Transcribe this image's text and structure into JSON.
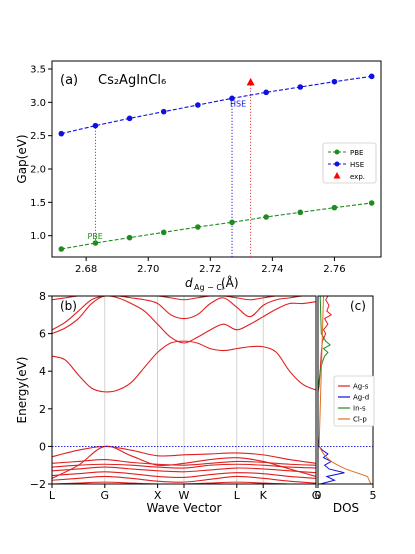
{
  "chart_data": [
    {
      "panel": "(a)",
      "type": "scatter",
      "title": "Cs₂AgInCl₆",
      "xlabel_main": "d",
      "xlabel_sub": "Ag − Cl",
      "xlabel_unit": "(Å)",
      "ylabel": "Gap(eV)",
      "xlim": [
        2.669,
        2.775
      ],
      "ylim": [
        0.68,
        3.62
      ],
      "xticks": [
        "2.68",
        "2.70",
        "2.72",
        "2.74",
        "2.76"
      ],
      "yticks": [
        "1.0",
        "1.5",
        "2.0",
        "2.5",
        "3.0",
        "3.5"
      ],
      "legend": [
        "PBE",
        "HSE",
        "exp."
      ],
      "legend_position": "right",
      "annotations": [
        "PBE",
        "HSE"
      ],
      "series": [
        {
          "name": "PBE",
          "color": "#1f8c1f",
          "x": [
            2.672,
            2.683,
            2.694,
            2.705,
            2.716,
            2.727,
            2.738,
            2.749,
            2.76,
            2.772
          ],
          "y": [
            0.8,
            0.89,
            0.97,
            1.05,
            1.13,
            1.2,
            1.28,
            1.35,
            1.42,
            1.49
          ]
        },
        {
          "name": "HSE",
          "color": "#1010e0",
          "x": [
            2.672,
            2.683,
            2.694,
            2.705,
            2.716,
            2.727,
            2.738,
            2.749,
            2.76,
            2.772
          ],
          "y": [
            2.53,
            2.65,
            2.76,
            2.86,
            2.96,
            3.06,
            3.15,
            3.23,
            3.31,
            3.39
          ]
        },
        {
          "name": "exp.",
          "color": "#ff0000",
          "x": [
            2.733
          ],
          "y": [
            3.3
          ]
        }
      ],
      "markers": [
        {
          "style": "green-dotted",
          "x": 2.683,
          "y_from": 0.89,
          "y_to": 2.65
        },
        {
          "style": "blue-dotted",
          "x": 2.727,
          "y_from": 0.68,
          "y_to": 3.06
        },
        {
          "style": "red-dotted",
          "x": 2.733,
          "y_from": 0.68,
          "y_to": 3.3
        }
      ]
    },
    {
      "panel": "(b)",
      "type": "line",
      "xlabel": "Wave Vector",
      "ylabel": "Energy(eV)",
      "ylim": [
        -2,
        8
      ],
      "yticks": [
        "−2",
        "0",
        "2",
        "4",
        "6",
        "8"
      ],
      "kpoints": [
        "L",
        "G",
        "X",
        "W",
        "L",
        "K",
        "G"
      ],
      "kpositions": [
        0,
        1,
        2,
        2.5,
        3.5,
        4.0,
        5.0
      ],
      "fermi_level": 0,
      "color": "#e02020",
      "bands": [
        {
          "x": [
            0,
            0.5,
            1,
            1.5,
            2,
            2.5,
            3,
            3.5,
            4,
            4.5,
            5
          ],
          "y": [
            -2.0,
            -1.95,
            -1.9,
            -1.95,
            -2.0,
            -2.0,
            -1.95,
            -1.9,
            -1.95,
            -2.0,
            -2.0
          ]
        },
        {
          "x": [
            0,
            0.5,
            1,
            1.5,
            2,
            2.5,
            3,
            3.5,
            4,
            4.5,
            5
          ],
          "y": [
            -1.8,
            -1.7,
            -1.6,
            -1.7,
            -1.85,
            -1.9,
            -1.75,
            -1.6,
            -1.7,
            -1.85,
            -1.95
          ]
        },
        {
          "x": [
            0,
            0.5,
            1,
            1.5,
            2,
            2.5,
            3,
            3.5,
            4,
            4.5,
            5
          ],
          "y": [
            -1.55,
            -1.45,
            -1.35,
            -1.45,
            -1.6,
            -1.65,
            -1.5,
            -1.4,
            -1.45,
            -1.6,
            -1.7
          ]
        },
        {
          "x": [
            0,
            0.5,
            1,
            1.5,
            2,
            2.5,
            3,
            3.5,
            4,
            4.5,
            5
          ],
          "y": [
            -1.3,
            -1.2,
            -1.1,
            -1.2,
            -1.3,
            -1.35,
            -1.25,
            -1.15,
            -1.2,
            -1.3,
            -1.4
          ]
        },
        {
          "x": [
            0,
            0.5,
            1,
            1.5,
            2,
            2.5,
            3,
            3.5,
            4,
            4.5,
            5
          ],
          "y": [
            -1.1,
            -1.0,
            -0.95,
            -1.0,
            -1.1,
            -1.15,
            -1.0,
            -0.95,
            -1.0,
            -1.1,
            -1.15
          ]
        },
        {
          "x": [
            0,
            0.5,
            1,
            1.5,
            2,
            2.5,
            3,
            3.5,
            4,
            4.5,
            5
          ],
          "y": [
            -0.9,
            -0.8,
            -0.7,
            -0.85,
            -0.95,
            -1.0,
            -0.9,
            -0.8,
            -0.85,
            -0.95,
            -1.0
          ]
        },
        {
          "x": [
            0,
            0.5,
            1,
            1.5,
            2,
            2.5,
            3,
            3.5,
            4,
            4.5,
            5
          ],
          "y": [
            -0.55,
            -0.2,
            0.0,
            -0.2,
            -0.5,
            -0.45,
            -0.4,
            -0.35,
            -0.45,
            -0.7,
            -0.9
          ]
        },
        {
          "x": [
            0,
            0.5,
            1,
            1.5,
            2,
            2.5,
            3,
            3.5,
            4,
            4.5,
            5
          ],
          "y": [
            -1.7,
            -1.0,
            0.0,
            -0.5,
            -1.0,
            -0.9,
            -0.7,
            -0.6,
            -0.8,
            -1.2,
            -1.6
          ]
        },
        {
          "x": [
            0,
            0.25,
            0.5,
            0.75,
            1,
            1.25,
            1.5,
            1.75,
            2,
            2.25,
            2.5,
            2.75,
            3,
            3.25,
            3.5,
            3.75,
            4,
            4.25,
            4.5,
            4.75,
            5
          ],
          "y": [
            4.8,
            4.6,
            3.8,
            3.1,
            2.9,
            3.0,
            3.4,
            4.2,
            5.0,
            5.5,
            5.6,
            5.5,
            5.2,
            5.1,
            5.2,
            5.3,
            5.3,
            5.0,
            4.0,
            3.3,
            3.0
          ]
        },
        {
          "x": [
            0,
            0.25,
            0.5,
            0.75,
            1,
            1.25,
            1.5,
            1.75,
            2,
            2.25,
            2.5,
            2.75,
            3,
            3.25,
            3.5,
            3.75,
            4,
            4.25,
            4.5,
            4.75,
            5
          ],
          "y": [
            6.0,
            6.3,
            6.8,
            7.6,
            8.0,
            7.9,
            7.6,
            7.2,
            6.5,
            5.8,
            5.5,
            5.8,
            6.2,
            6.5,
            6.2,
            6.5,
            6.9,
            7.3,
            7.6,
            7.6,
            7.7
          ]
        },
        {
          "x": [
            0,
            0.25,
            0.5,
            0.75,
            1,
            1.25,
            1.5,
            1.75,
            2,
            2.25,
            2.5,
            2.75,
            3,
            3.25,
            3.5,
            3.75,
            4,
            4.25,
            4.5,
            4.75,
            5
          ],
          "y": [
            6.2,
            6.6,
            7.2,
            7.8,
            8.0,
            8.0,
            7.9,
            7.8,
            7.6,
            7.0,
            6.8,
            7.0,
            7.6,
            7.9,
            7.4,
            6.9,
            7.5,
            7.8,
            7.9,
            8.0,
            8.0
          ]
        },
        {
          "x": [
            0,
            0.25,
            0.5,
            0.75,
            1,
            1.25,
            1.5,
            1.75,
            2,
            2.25,
            2.5,
            2.75,
            3,
            3.25,
            3.5,
            3.75,
            4,
            4.25,
            4.5,
            4.75,
            5
          ],
          "y": [
            7.8,
            7.9,
            8.0,
            8.0,
            8.0,
            8.0,
            8.0,
            8.0,
            8.0,
            7.9,
            7.8,
            7.9,
            8.0,
            8.0,
            7.9,
            7.8,
            7.9,
            8.0,
            8.0,
            8.0,
            8.0
          ]
        }
      ]
    },
    {
      "panel": "(c)",
      "type": "line",
      "xlabel": "DOS",
      "xlim": [
        0,
        5
      ],
      "xticks": [
        "0",
        "5"
      ],
      "ylim": [
        -2,
        8
      ],
      "legend": [
        "Ag-s",
        "Ag-d",
        "In-s",
        "Cl-p"
      ],
      "legend_position": "right",
      "series": [
        {
          "name": "Ag-s",
          "color": "#e02020",
          "e": [
            -2.0,
            -1.0,
            0.0,
            2.9,
            3.2,
            4.0,
            5.0,
            5.6,
            6.0,
            6.2,
            6.5,
            6.8,
            7.0,
            7.2,
            7.5,
            7.8,
            8.0
          ],
          "dos": [
            0,
            0,
            0,
            0,
            0.1,
            0.2,
            0.3,
            0.4,
            0.7,
            0.5,
            0.9,
            0.6,
            1.2,
            0.8,
            1.0,
            0.7,
            0.9
          ]
        },
        {
          "name": "Ag-d",
          "color": "#1010e0",
          "e": [
            -2.0,
            -1.8,
            -1.6,
            -1.4,
            -1.2,
            -1.0,
            -0.8,
            -0.6,
            -0.4,
            -0.2,
            0.0,
            0.5,
            8.0
          ],
          "dos": [
            0.2,
            1.5,
            0.8,
            2.4,
            1.0,
            0.6,
            1.2,
            0.5,
            0.9,
            0.4,
            0.1,
            0,
            0
          ]
        },
        {
          "name": "In-s",
          "color": "#1f8c1f",
          "e": [
            -2.0,
            0.0,
            3.0,
            3.5,
            4.0,
            4.5,
            4.8,
            5.0,
            5.2,
            5.4,
            5.6,
            6.0,
            8.0
          ],
          "dos": [
            0,
            0,
            0,
            0.1,
            0.2,
            0.4,
            0.6,
            0.9,
            0.5,
            1.1,
            0.7,
            0.3,
            0.2
          ]
        },
        {
          "name": "Cl-p",
          "color": "#e07020",
          "e": [
            -2.0,
            -1.6,
            -1.2,
            -1.0,
            -0.8,
            -0.6,
            -0.4,
            -0.2,
            0.0,
            2.0,
            4.0,
            6.0,
            8.0
          ],
          "dos": [
            4.8,
            4.5,
            2.5,
            1.8,
            1.2,
            0.8,
            0.5,
            0.3,
            0.1,
            0.2,
            0.3,
            0.4,
            0.5
          ]
        }
      ]
    }
  ]
}
